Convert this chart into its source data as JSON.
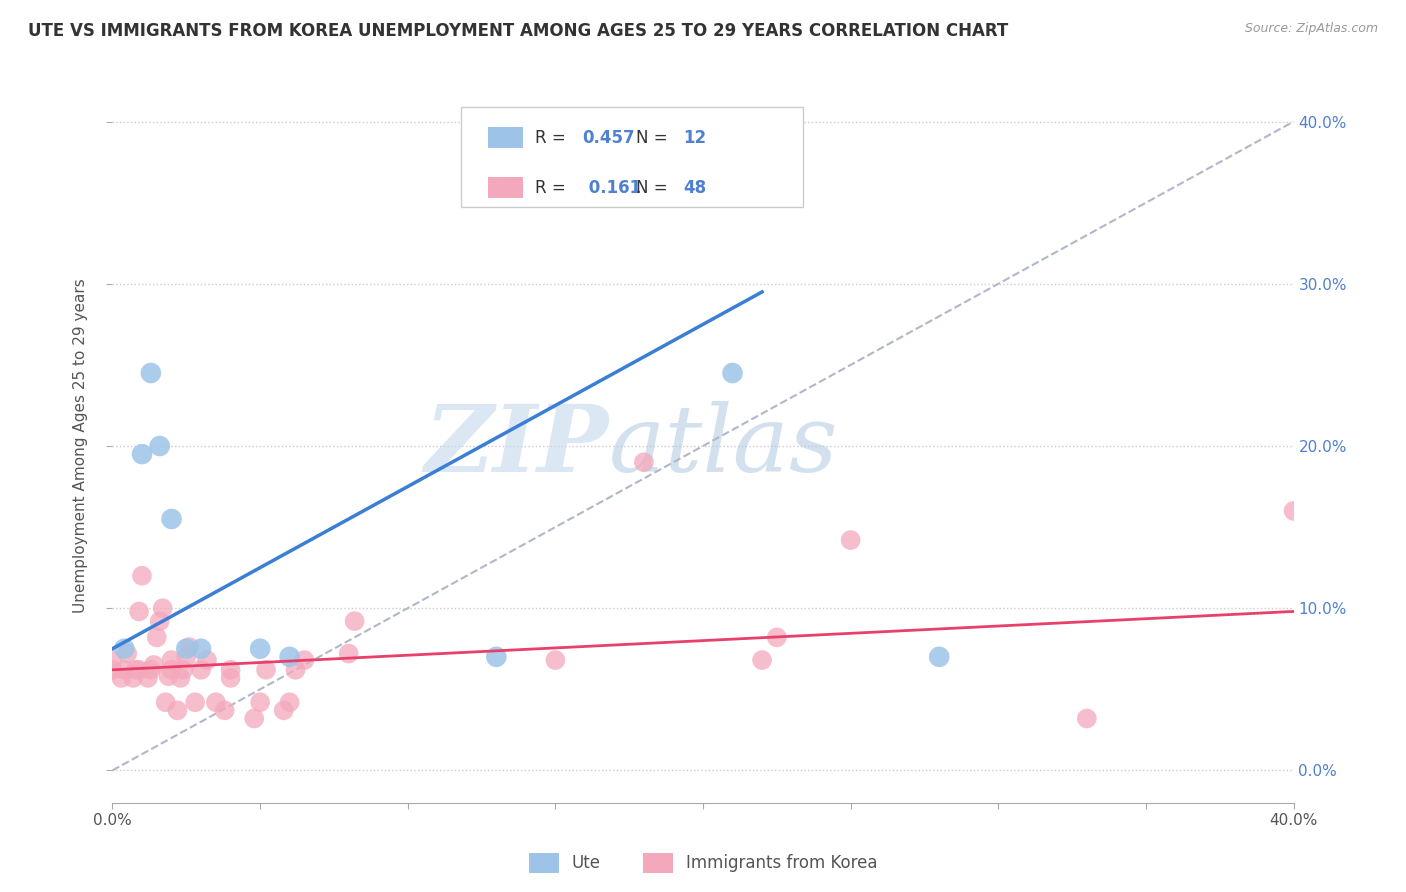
{
  "title": "UTE VS IMMIGRANTS FROM KOREA UNEMPLOYMENT AMONG AGES 25 TO 29 YEARS CORRELATION CHART",
  "source": "Source: ZipAtlas.com",
  "ylabel": "Unemployment Among Ages 25 to 29 years",
  "xlim": [
    0.0,
    0.4
  ],
  "ylim": [
    -0.02,
    0.42
  ],
  "background_color": "#ffffff",
  "watermark_zip": "ZIP",
  "watermark_atlas": "atlas",
  "legend_R_ute": "0.457",
  "legend_N_ute": "12",
  "legend_R_korean": "0.161",
  "legend_N_korean": "48",
  "ute_color": "#9dc4e8",
  "korean_color": "#f4a8bc",
  "ute_line_color": "#3a7fd4",
  "korean_line_color": "#e8406a",
  "dashed_line_color": "#b0b8c8",
  "ute_scatter": [
    [
      0.004,
      0.075
    ],
    [
      0.01,
      0.195
    ],
    [
      0.013,
      0.245
    ],
    [
      0.016,
      0.2
    ],
    [
      0.02,
      0.155
    ],
    [
      0.025,
      0.075
    ],
    [
      0.03,
      0.075
    ],
    [
      0.05,
      0.075
    ],
    [
      0.06,
      0.07
    ],
    [
      0.13,
      0.07
    ],
    [
      0.21,
      0.245
    ],
    [
      0.28,
      0.07
    ]
  ],
  "korean_scatter": [
    [
      0.0,
      0.062
    ],
    [
      0.0,
      0.068
    ],
    [
      0.003,
      0.057
    ],
    [
      0.004,
      0.062
    ],
    [
      0.005,
      0.072
    ],
    [
      0.007,
      0.057
    ],
    [
      0.008,
      0.062
    ],
    [
      0.009,
      0.062
    ],
    [
      0.009,
      0.098
    ],
    [
      0.01,
      0.12
    ],
    [
      0.012,
      0.057
    ],
    [
      0.013,
      0.062
    ],
    [
      0.014,
      0.065
    ],
    [
      0.015,
      0.082
    ],
    [
      0.016,
      0.092
    ],
    [
      0.017,
      0.1
    ],
    [
      0.018,
      0.042
    ],
    [
      0.019,
      0.058
    ],
    [
      0.02,
      0.062
    ],
    [
      0.02,
      0.068
    ],
    [
      0.022,
      0.037
    ],
    [
      0.023,
      0.057
    ],
    [
      0.024,
      0.062
    ],
    [
      0.025,
      0.07
    ],
    [
      0.026,
      0.076
    ],
    [
      0.028,
      0.042
    ],
    [
      0.03,
      0.062
    ],
    [
      0.032,
      0.068
    ],
    [
      0.035,
      0.042
    ],
    [
      0.038,
      0.037
    ],
    [
      0.04,
      0.057
    ],
    [
      0.04,
      0.062
    ],
    [
      0.048,
      0.032
    ],
    [
      0.05,
      0.042
    ],
    [
      0.052,
      0.062
    ],
    [
      0.058,
      0.037
    ],
    [
      0.06,
      0.042
    ],
    [
      0.062,
      0.062
    ],
    [
      0.065,
      0.068
    ],
    [
      0.08,
      0.072
    ],
    [
      0.082,
      0.092
    ],
    [
      0.15,
      0.068
    ],
    [
      0.18,
      0.19
    ],
    [
      0.22,
      0.068
    ],
    [
      0.225,
      0.082
    ],
    [
      0.25,
      0.142
    ],
    [
      0.33,
      0.032
    ],
    [
      0.4,
      0.16
    ]
  ],
  "ute_line": [
    [
      0.0,
      0.075
    ],
    [
      0.22,
      0.295
    ]
  ],
  "korean_line": [
    [
      0.0,
      0.062
    ],
    [
      0.4,
      0.098
    ]
  ],
  "grid_color": "#cccccc",
  "title_fontsize": 12,
  "axis_label_fontsize": 11,
  "tick_fontsize": 11,
  "right_tick_color": "#5080d0"
}
